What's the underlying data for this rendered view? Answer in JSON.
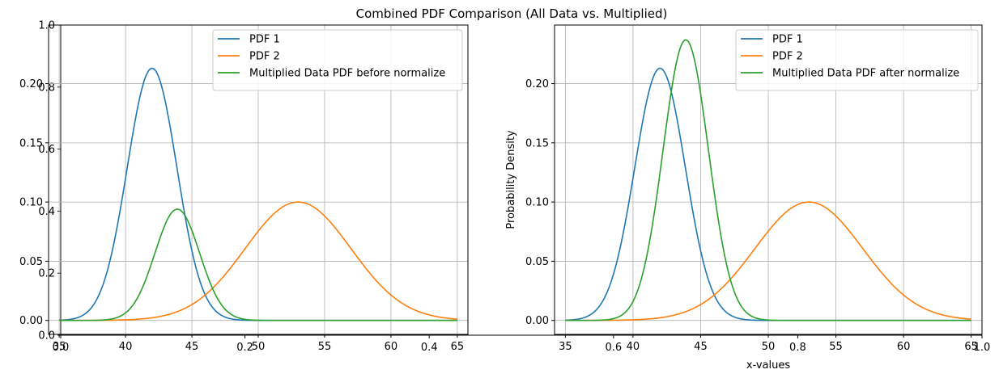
{
  "title": "Combined PDF Comparison (All Data vs. Multiplied)",
  "colors": {
    "pdf1": "#1f77b4",
    "pdf2": "#ff7f0e",
    "mult": "#2ca02c"
  },
  "figure_axes": {
    "xticks": [
      "0.0",
      "0.2",
      "0.4",
      "0.6",
      "0.8",
      "1.0"
    ],
    "yticks": [
      "0.0",
      "0.2",
      "0.4",
      "0.6",
      "0.8",
      "1.0"
    ]
  },
  "chart_data": [
    {
      "type": "line",
      "xlabel": "",
      "ylabel": "",
      "xlim": [
        34.2,
        65.8
      ],
      "ylim": [
        -0.0118,
        0.2495
      ],
      "xticks": [
        35,
        40,
        45,
        50,
        55,
        60,
        65
      ],
      "yticks": [
        0.0,
        0.05,
        0.1,
        0.15,
        0.2
      ],
      "ytick_labels": [
        "0.00",
        "0.05",
        "0.10",
        "0.15",
        "0.20"
      ],
      "grid": true,
      "legend_position": "top-right",
      "series": [
        {
          "name": "PDF 1",
          "kind": "normal",
          "mean": 42,
          "sd": 1.87,
          "peak": 0.213,
          "color_key": "pdf1"
        },
        {
          "name": "PDF 2",
          "kind": "normal",
          "mean": 53,
          "sd": 3.99,
          "peak": 0.1,
          "color_key": "pdf2"
        },
        {
          "name": "Multiplied Data PDF before normalize",
          "kind": "normal",
          "mean": 43.9,
          "sd": 1.68,
          "peak": 0.094,
          "color_key": "mult"
        }
      ]
    },
    {
      "type": "line",
      "xlabel": "x-values",
      "ylabel": "Probability Density",
      "xlim": [
        34.2,
        65.8
      ],
      "ylim": [
        -0.0118,
        0.2495
      ],
      "xticks": [
        35,
        40,
        45,
        50,
        55,
        60,
        65
      ],
      "yticks": [
        0.0,
        0.05,
        0.1,
        0.15,
        0.2
      ],
      "ytick_labels": [
        "0.00",
        "0.05",
        "0.10",
        "0.15",
        "0.20"
      ],
      "grid": true,
      "legend_position": "top-right",
      "series": [
        {
          "name": "PDF 1",
          "kind": "normal",
          "mean": 42,
          "sd": 1.87,
          "peak": 0.213,
          "color_key": "pdf1"
        },
        {
          "name": "PDF 2",
          "kind": "normal",
          "mean": 53,
          "sd": 3.99,
          "peak": 0.1,
          "color_key": "pdf2"
        },
        {
          "name": "Multiplied Data PDF after normalize",
          "kind": "normal",
          "mean": 43.9,
          "sd": 1.68,
          "peak": 0.237,
          "color_key": "mult"
        }
      ]
    }
  ]
}
